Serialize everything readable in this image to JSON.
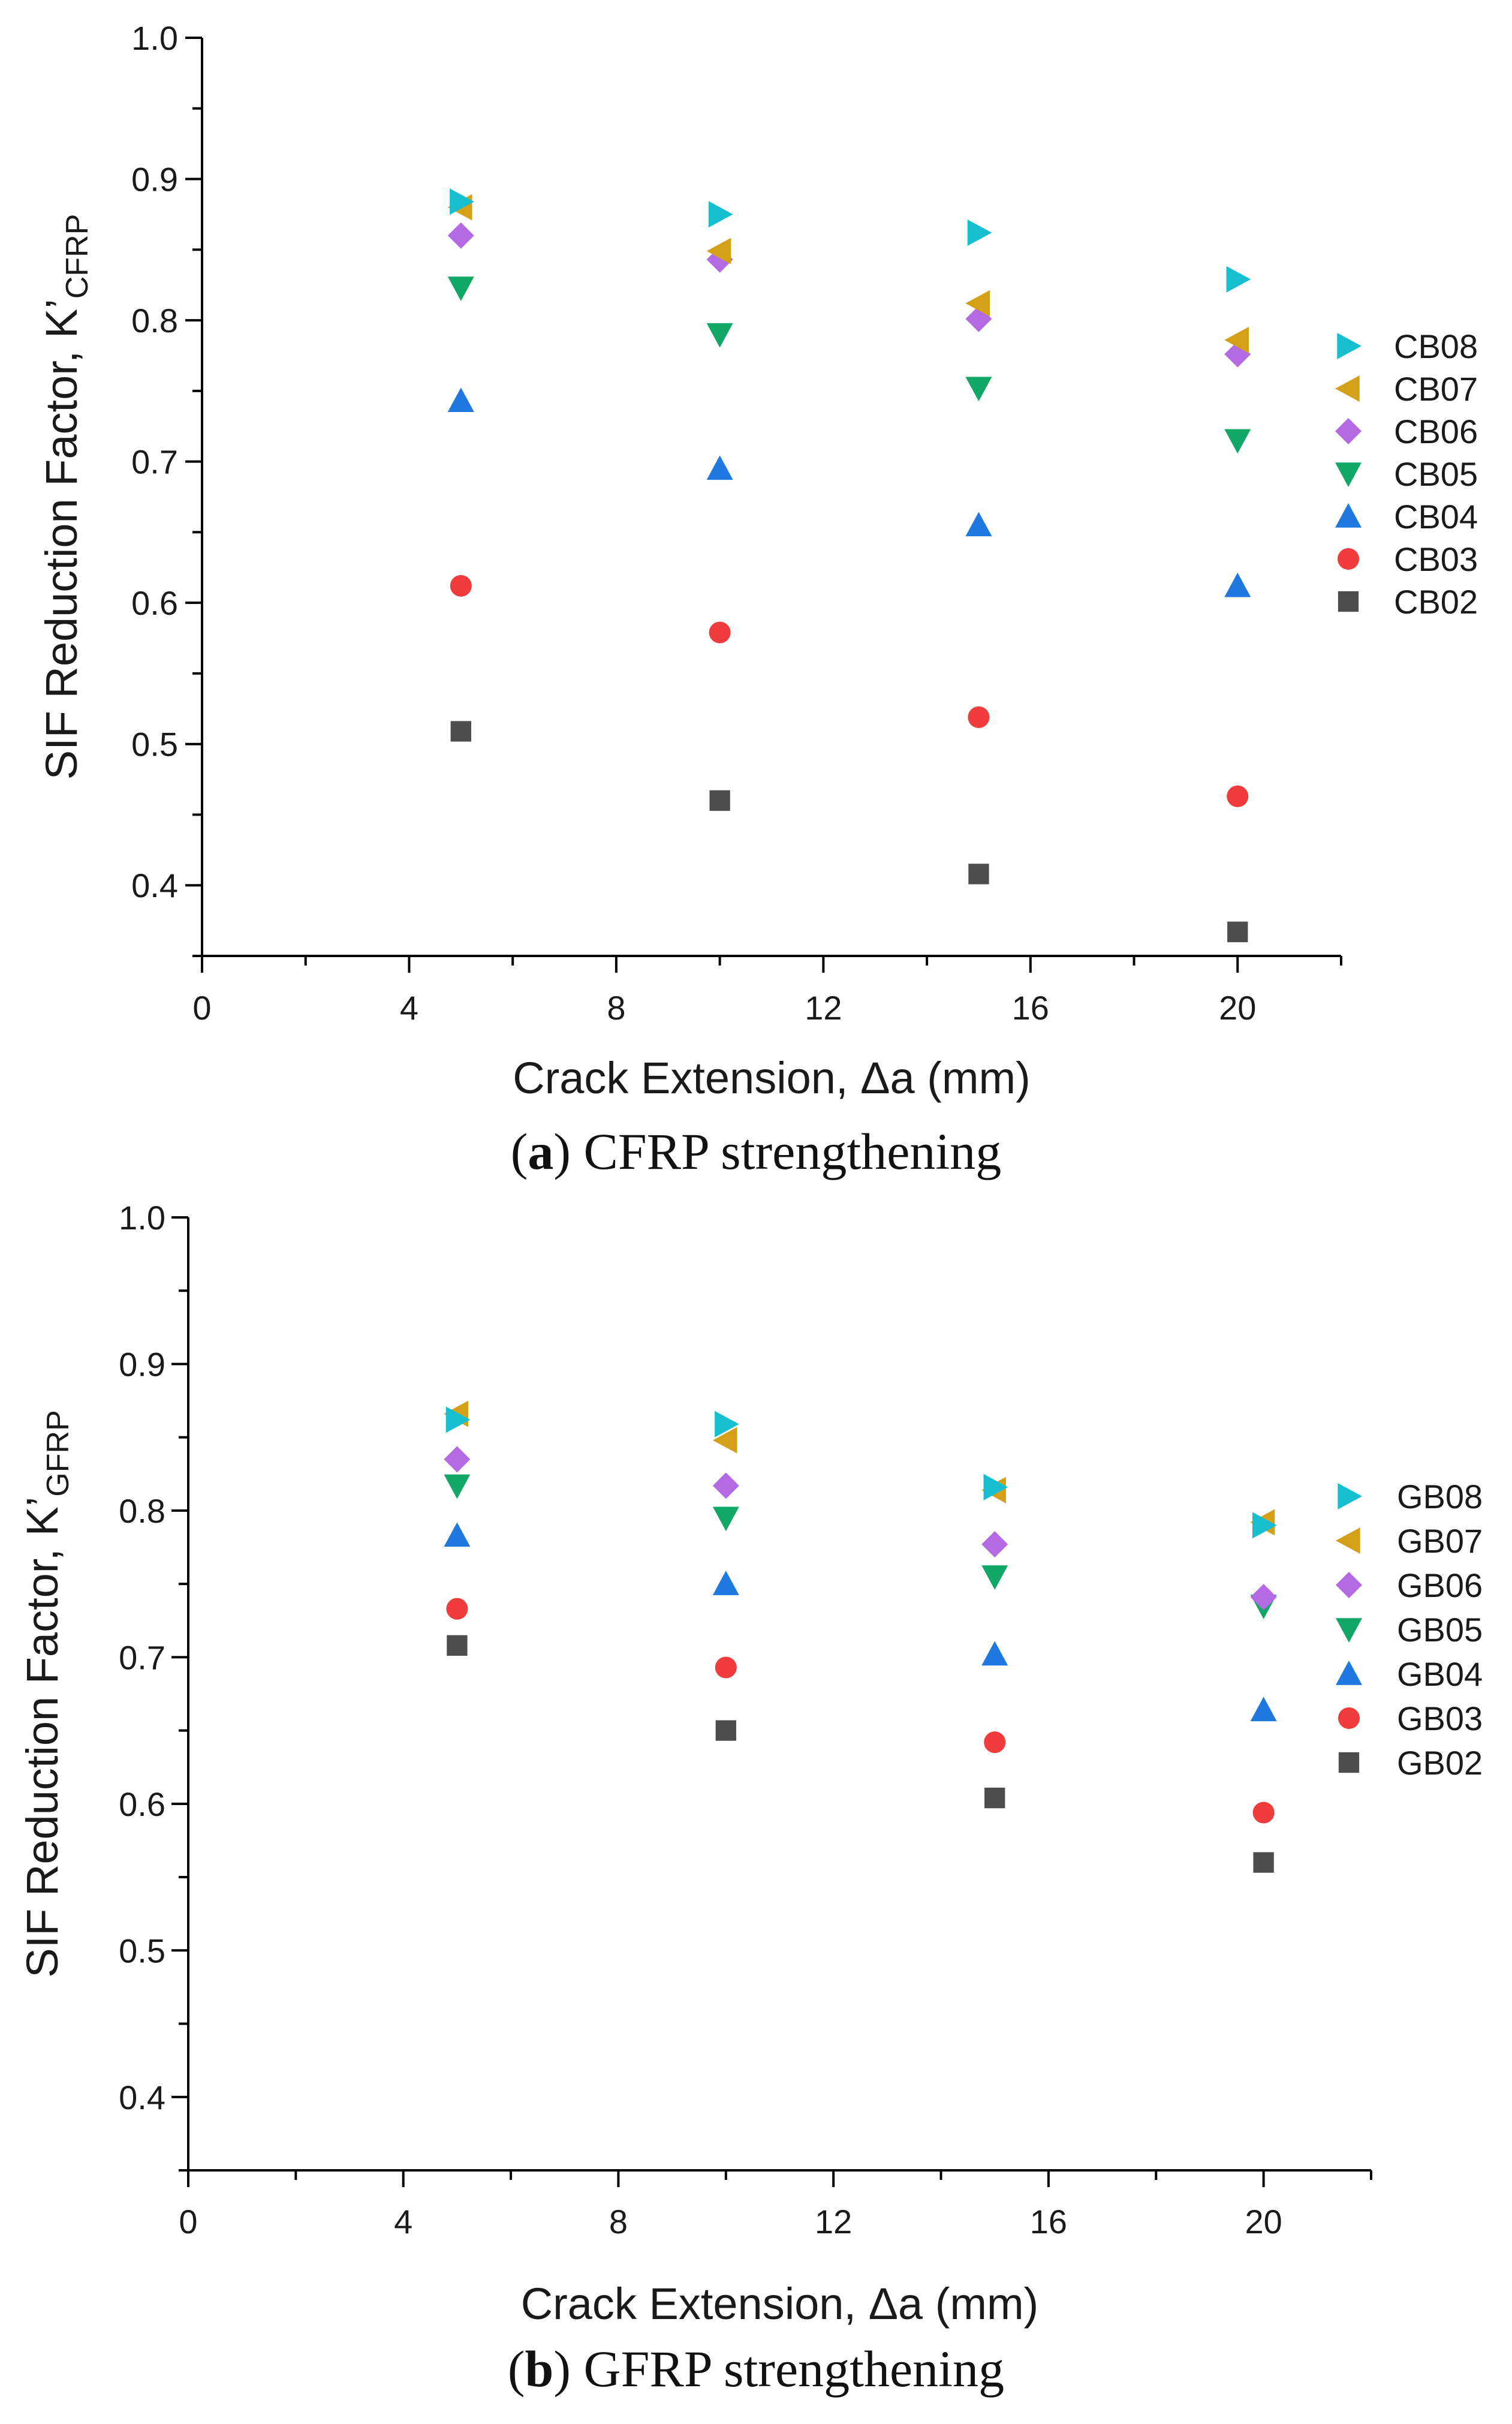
{
  "chart_data": [
    {
      "type": "scatter",
      "title": "",
      "xlabel": "Crack Extension, Δa (mm)",
      "ylabel_main": "SIF Reduction Factor, K’",
      "ylabel_sub": "CFRP",
      "xlim": [
        0,
        22
      ],
      "ylim": [
        0.35,
        1.0
      ],
      "xticks": [
        "0",
        "4",
        "8",
        "12",
        "16",
        "20"
      ],
      "yticks": [
        "0.4",
        "0.5",
        "0.6",
        "0.7",
        "0.8",
        "0.9",
        "1.0"
      ],
      "legend_position": "right",
      "x": [
        5,
        10,
        15,
        20
      ],
      "series": [
        {
          "name": "CB08",
          "marker": "triangle-right",
          "color": "#17becf",
          "values": [
            0.884,
            0.875,
            0.862,
            0.829
          ]
        },
        {
          "name": "CB07",
          "marker": "triangle-left",
          "color": "#d4a017",
          "values": [
            0.88,
            0.849,
            0.812,
            0.786
          ]
        },
        {
          "name": "CB06",
          "marker": "diamond",
          "color": "#b36ae2",
          "values": [
            0.86,
            0.843,
            0.801,
            0.776
          ]
        },
        {
          "name": "CB05",
          "marker": "triangle-down",
          "color": "#11a867",
          "values": [
            0.823,
            0.79,
            0.752,
            0.715
          ]
        },
        {
          "name": "CB04",
          "marker": "triangle-up",
          "color": "#1f77e0",
          "values": [
            0.743,
            0.695,
            0.655,
            0.612
          ]
        },
        {
          "name": "CB03",
          "marker": "circle",
          "color": "#f03c3c",
          "values": [
            0.612,
            0.579,
            0.519,
            0.463
          ]
        },
        {
          "name": "CB02",
          "marker": "square",
          "color": "#4d4d4d",
          "values": [
            0.509,
            0.46,
            0.408,
            0.367
          ]
        }
      ]
    },
    {
      "type": "scatter",
      "title": "",
      "xlabel": "Crack Extension, Δa (mm)",
      "ylabel_main": "SIF Reduction Factor, K’",
      "ylabel_sub": "GFRP",
      "xlim": [
        0,
        22
      ],
      "ylim": [
        0.35,
        1.0
      ],
      "xticks": [
        "0",
        "4",
        "8",
        "12",
        "16",
        "20"
      ],
      "yticks": [
        "0.4",
        "0.5",
        "0.6",
        "0.7",
        "0.8",
        "0.9",
        "1.0"
      ],
      "legend_position": "right",
      "x": [
        5,
        10,
        15,
        20
      ],
      "series": [
        {
          "name": "GB08",
          "marker": "triangle-right",
          "color": "#17becf",
          "values": [
            0.862,
            0.859,
            0.816,
            0.79
          ]
        },
        {
          "name": "GB07",
          "marker": "triangle-left",
          "color": "#d4a017",
          "values": [
            0.866,
            0.848,
            0.814,
            0.792
          ]
        },
        {
          "name": "GB06",
          "marker": "diamond",
          "color": "#b36ae2",
          "values": [
            0.835,
            0.817,
            0.777,
            0.741
          ]
        },
        {
          "name": "GB05",
          "marker": "triangle-down",
          "color": "#11a867",
          "values": [
            0.817,
            0.795,
            0.755,
            0.735
          ]
        },
        {
          "name": "GB04",
          "marker": "triangle-up",
          "color": "#1f77e0",
          "values": [
            0.783,
            0.75,
            0.702,
            0.664
          ]
        },
        {
          "name": "GB03",
          "marker": "circle",
          "color": "#f03c3c",
          "values": [
            0.733,
            0.693,
            0.642,
            0.594
          ]
        },
        {
          "name": "GB02",
          "marker": "square",
          "color": "#4d4d4d",
          "values": [
            0.708,
            0.65,
            0.604,
            0.56
          ]
        }
      ]
    }
  ],
  "captions": [
    {
      "letter": "a",
      "text": " CFRP strengthening"
    },
    {
      "letter": "b",
      "text": " GFRP strengthening"
    }
  ]
}
